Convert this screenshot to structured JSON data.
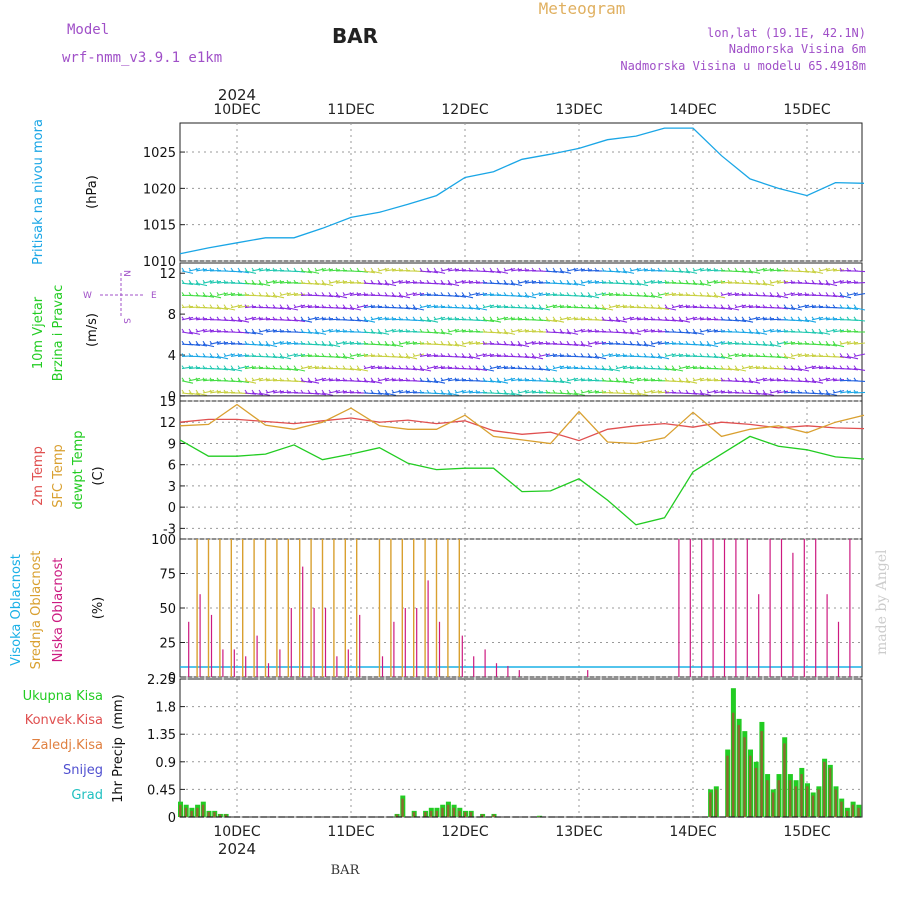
{
  "header": {
    "model_label": "Model",
    "model_name": "wrf-nmm_v3.9.1  e1km",
    "station": "BAR",
    "product": "Meteogram",
    "lonlat": "lon,lat (19.1E, 42.1N)",
    "elevation": "Nadmorska Visina 6m",
    "model_elevation": "Nadmorska Visina u modelu 65.4918m",
    "year_top": "2024",
    "year_bottom": "2024",
    "footer_station": "BAR",
    "credit": "made by Angel"
  },
  "colors": {
    "pressure": "#1aa6e6",
    "temp2m": "#e05050",
    "sfc": "#d9a030",
    "dewpt": "#22cc22",
    "high_cloud": "#1ab0e6",
    "mid_cloud": "#d9a030",
    "low_cloud": "#cc1a80",
    "total_precip": "#22cc22",
    "conv_precip": "#e05050",
    "grid": "#999999"
  },
  "days": [
    "10DEC",
    "11DEC",
    "12DEC",
    "13DEC",
    "14DEC",
    "15DEC"
  ],
  "chart_data": [
    {
      "type": "line",
      "panel": "pressure",
      "ylabel": "Pritisak na nivou mora",
      "unit": "(hPa)",
      "yticks": [
        1010,
        1015,
        1020,
        1025
      ],
      "ylim": [
        1010,
        1029
      ],
      "xlim": [
        0,
        6
      ],
      "series": [
        {
          "x": [
            0,
            0.25,
            0.5,
            0.75,
            1,
            1.25,
            1.5,
            1.75,
            2,
            2.25,
            2.5,
            2.75,
            3,
            3.25,
            3.5,
            3.75,
            4,
            4.25,
            4.5,
            4.75,
            5,
            5.25,
            5.5,
            5.75,
            6
          ],
          "y": [
            1011,
            1011.8,
            1012.5,
            1013.2,
            1013.2,
            1014.5,
            1016,
            1016.7,
            1017.8,
            1019,
            1021.5,
            1022.3,
            1024,
            1024.7,
            1025.5,
            1026.7,
            1027.2,
            1028.3,
            1028.3,
            1024.5,
            1021.3,
            1020,
            1019,
            1020.8,
            1020.7
          ]
        }
      ]
    },
    {
      "type": "wind-barbs",
      "panel": "wind",
      "ylabel_line1": "10m Vjetar",
      "ylabel_line2": "Brzina i Pravac",
      "unit": "(m/s)",
      "compass": {
        "n": "N",
        "s": "S",
        "w": "W",
        "e": "E"
      },
      "yticks": [
        0,
        4,
        8,
        12
      ],
      "ylim": [
        -0.5,
        13
      ]
    },
    {
      "type": "line",
      "panel": "temperature",
      "ylabels": [
        "2m Temp",
        "SFC Temp",
        "dewpt Temp"
      ],
      "unit": "(C)",
      "yticks": [
        -3,
        0,
        3,
        6,
        9,
        12,
        15
      ],
      "ylim": [
        -4.5,
        15
      ],
      "xlim": [
        0,
        6
      ],
      "series": [
        {
          "name": "2m Temp",
          "x": [
            0,
            0.25,
            0.5,
            0.75,
            1,
            1.25,
            1.5,
            1.75,
            2,
            2.25,
            2.5,
            2.75,
            3,
            3.25,
            3.5,
            3.75,
            4,
            4.25,
            4.5,
            4.75,
            5,
            5.25,
            5.5,
            5.75,
            6
          ],
          "y": [
            12,
            12.4,
            12.4,
            12.1,
            11.8,
            12.2,
            12.6,
            12,
            12.3,
            11.8,
            12.2,
            10.8,
            10.3,
            10.6,
            9.4,
            11,
            11.5,
            11.8,
            11.3,
            12,
            11.7,
            11.2,
            11.5,
            11.2,
            11.1
          ]
        },
        {
          "name": "SFC Temp",
          "x": [
            0,
            0.25,
            0.5,
            0.75,
            1,
            1.25,
            1.5,
            1.75,
            2,
            2.25,
            2.5,
            2.75,
            3,
            3.25,
            3.5,
            3.75,
            4,
            4.25,
            4.5,
            4.75,
            5,
            5.25,
            5.5,
            5.75,
            6
          ],
          "y": [
            11.5,
            11.7,
            14.5,
            11.6,
            11,
            12,
            14,
            11.5,
            11,
            11,
            13,
            10,
            9.5,
            9,
            13.5,
            9.2,
            9,
            9.8,
            13.4,
            10,
            11,
            11.5,
            10.5,
            12,
            13
          ]
        },
        {
          "name": "dewpt Temp",
          "x": [
            0,
            0.25,
            0.5,
            0.75,
            1,
            1.25,
            1.5,
            1.75,
            2,
            2.25,
            2.5,
            2.75,
            3,
            3.25,
            3.5,
            3.75,
            4,
            4.25,
            4.5,
            4.75,
            5,
            5.25,
            5.5,
            5.75,
            6
          ],
          "y": [
            9.5,
            7.2,
            7.2,
            7.5,
            8.8,
            6.7,
            7.5,
            8.4,
            6.2,
            5.3,
            5.5,
            5.5,
            2.2,
            2.3,
            4,
            1,
            -2.5,
            -1.5,
            5,
            7.5,
            10,
            8.6,
            8.1,
            7.1,
            6.8
          ]
        }
      ]
    },
    {
      "type": "bar",
      "panel": "clouds",
      "ylabels": [
        "Visoka Oblacnost",
        "Srednja Oblacnost",
        "Niska Oblacnost"
      ],
      "unit": "(%)",
      "yticks": [
        0,
        25,
        50,
        75,
        100
      ],
      "ylim": [
        0,
        100
      ],
      "mid_x": [
        0.1,
        0.2,
        0.3,
        0.4,
        0.5,
        0.6,
        0.7,
        0.8,
        0.9,
        1.0,
        1.1,
        1.2,
        1.3,
        1.4,
        1.5,
        1.6,
        1.7,
        1.8,
        1.9,
        2.0,
        2.1,
        2.2,
        2.3,
        2.4,
        2.5,
        2.6,
        2.7,
        2.8,
        2.9,
        3.0,
        3.1,
        3.2,
        3.3,
        3.4,
        3.5,
        3.6,
        3.7,
        3.8,
        3.9,
        4.0,
        4.1,
        4.2,
        4.3,
        4.4,
        4.5,
        4.6,
        4.7,
        4.8,
        4.9,
        5.0,
        5.1,
        5.2,
        5.3,
        5.4,
        5.5,
        5.6,
        5.7,
        5.8,
        5.9
      ],
      "mid_values": [
        0,
        100,
        100,
        100,
        100,
        100,
        100,
        100,
        100,
        100,
        100,
        100,
        100,
        100,
        100,
        100,
        0,
        100,
        100,
        100,
        100,
        100,
        100,
        100,
        100,
        0,
        0,
        0,
        0,
        0,
        0,
        0,
        0,
        0,
        0,
        0,
        0,
        0,
        0,
        0,
        0,
        0,
        0,
        0,
        0,
        0,
        0,
        0,
        0,
        0,
        0,
        0,
        0,
        0,
        0,
        0,
        0,
        0,
        0
      ],
      "low_values": [
        40,
        60,
        45,
        20,
        20,
        15,
        30,
        10,
        20,
        50,
        80,
        50,
        50,
        15,
        20,
        45,
        0,
        15,
        40,
        50,
        50,
        70,
        40,
        0,
        30,
        15,
        20,
        10,
        8,
        5,
        0,
        0,
        0,
        0,
        0,
        5,
        0,
        0,
        0,
        0,
        0,
        0,
        0,
        100,
        100,
        100,
        100,
        100,
        100,
        100,
        60,
        100,
        100,
        90,
        100,
        100,
        60,
        40,
        100
      ]
    },
    {
      "type": "bar",
      "panel": "precipitation",
      "ylabels": [
        "Ukupna Kisa",
        "Konvek.Kisa",
        "Zaledj.Kisa",
        "Snijeg",
        "Grad"
      ],
      "ylabel_axis": "1hr Precip",
      "unit": "(mm)",
      "yticks": [
        0,
        0.45,
        0.9,
        1.35,
        1.8,
        2.25
      ],
      "ylim": [
        0,
        2.25
      ],
      "x": [
        0.05,
        0.1,
        0.15,
        0.2,
        0.25,
        0.3,
        0.35,
        0.4,
        0.45,
        1.95,
        2.0,
        2.1,
        2.2,
        2.25,
        2.3,
        2.35,
        2.4,
        2.45,
        2.5,
        2.55,
        2.6,
        2.7,
        2.8,
        3.2,
        4.7,
        4.75,
        4.85,
        4.9,
        4.95,
        5.0,
        5.05,
        5.1,
        5.15,
        5.2,
        5.25,
        5.3,
        5.35,
        5.4,
        5.45,
        5.5,
        5.55,
        5.6,
        5.65,
        5.7,
        5.75,
        5.8,
        5.85,
        5.9,
        5.95,
        6.0
      ],
      "total": [
        0.25,
        0.2,
        0.15,
        0.2,
        0.25,
        0.1,
        0.1,
        0.05,
        0.05,
        0.05,
        0.35,
        0.1,
        0.1,
        0.15,
        0.15,
        0.2,
        0.25,
        0.2,
        0.15,
        0.1,
        0.1,
        0.05,
        0.05,
        0.02,
        0.45,
        0.5,
        1.1,
        2.1,
        1.6,
        1.4,
        1.1,
        0.9,
        1.55,
        0.7,
        0.45,
        0.7,
        1.3,
        0.7,
        0.6,
        0.8,
        0.55,
        0.4,
        0.5,
        0.95,
        0.85,
        0.5,
        0.3,
        0.15,
        0.25,
        0.2
      ],
      "convective": [
        0.2,
        0.15,
        0.1,
        0.15,
        0.2,
        0.08,
        0.08,
        0.04,
        0.04,
        0.04,
        0.3,
        0.08,
        0.08,
        0.1,
        0.1,
        0.15,
        0.2,
        0.15,
        0.1,
        0.08,
        0.08,
        0.04,
        0.04,
        0.01,
        0.4,
        0.45,
        1.0,
        1.7,
        1.5,
        1.3,
        1.0,
        0.8,
        1.4,
        0.6,
        0.4,
        0.6,
        1.2,
        0.6,
        0.5,
        0.7,
        0.5,
        0.35,
        0.45,
        0.9,
        0.8,
        0.45,
        0.25,
        0.1,
        0.2,
        0.15
      ]
    }
  ]
}
